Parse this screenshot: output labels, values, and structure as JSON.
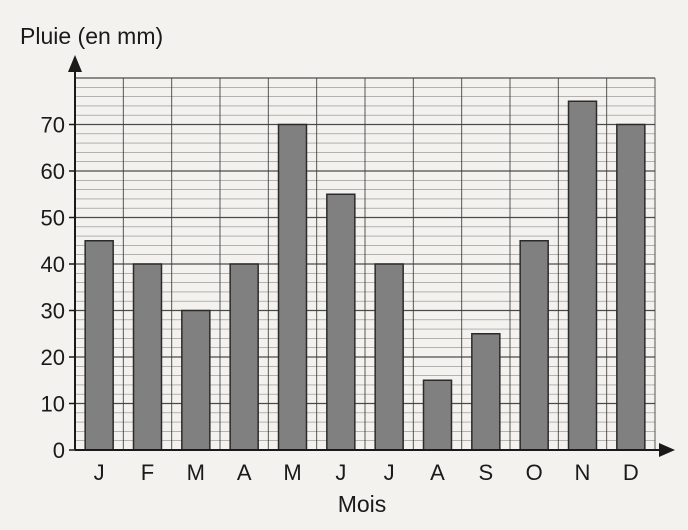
{
  "chart_data": {
    "type": "bar",
    "ylabel": "Pluie (en mm)",
    "xlabel": "Mois",
    "categories": [
      "J",
      "F",
      "M",
      "A",
      "M",
      "J",
      "J",
      "A",
      "S",
      "O",
      "N",
      "D"
    ],
    "values": [
      45,
      40,
      30,
      40,
      70,
      55,
      40,
      15,
      25,
      45,
      75,
      70
    ],
    "y_ticks": [
      "0",
      "10",
      "20",
      "30",
      "40",
      "50",
      "60",
      "70"
    ],
    "ylim": [
      0,
      80
    ],
    "grid": true,
    "legend": "none",
    "colors": {
      "bar_fill": "#808080",
      "bar_stroke": "#2a2a2a",
      "grid": "#3a3a3a",
      "axis": "#1a1a1a"
    }
  }
}
